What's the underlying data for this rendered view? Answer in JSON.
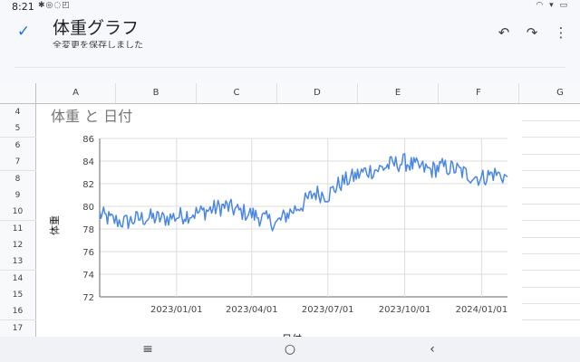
{
  "status_bar": {
    "time": "8:21",
    "left_icons": "✱◎◌◰",
    "right_icons": "◠ ▾ ▭"
  },
  "app_bar": {
    "title": "体重グラフ",
    "subtitle": "全変更を保存しました",
    "icons": {
      "check": "check-icon",
      "undo": "undo-icon",
      "redo": "redo-icon",
      "more": "more-vert-icon"
    }
  },
  "sheet": {
    "columns": [
      "A",
      "B",
      "C",
      "D",
      "E",
      "F",
      "G"
    ],
    "rows": [
      "4",
      "5",
      "6",
      "7",
      "8",
      "9",
      "10",
      "11",
      "12",
      "13",
      "14",
      "15",
      "16",
      "17"
    ]
  },
  "chart_data": {
    "type": "line",
    "title": "体重 と 日付",
    "xlabel": "日付",
    "ylabel": "体重",
    "x_range": [
      "2022-10-01",
      "2024-02-01"
    ],
    "ylim": [
      72,
      86
    ],
    "y_ticks": [
      72,
      74,
      76,
      78,
      80,
      82,
      84,
      86
    ],
    "x_ticks": [
      "2023/01/01",
      "2023/04/01",
      "2023/07/01",
      "2023/10/01",
      "2024/01/01"
    ],
    "grid": true,
    "color": "#4a86e8",
    "series": [
      {
        "x": [
          "2022-10-01",
          "2022-10-15",
          "2022-11-01",
          "2022-11-15",
          "2022-12-01",
          "2022-12-15",
          "2023-01-01",
          "2023-01-15",
          "2023-02-01",
          "2023-02-15",
          "2023-03-01",
          "2023-03-15",
          "2023-04-01",
          "2023-04-15",
          "2023-05-01",
          "2023-05-15",
          "2023-06-01",
          "2023-06-15",
          "2023-07-01",
          "2023-07-15",
          "2023-08-01",
          "2023-08-15",
          "2023-09-01",
          "2023-09-15",
          "2023-10-01",
          "2023-10-15",
          "2023-11-01",
          "2023-11-15",
          "2023-12-01",
          "2023-12-15",
          "2024-01-01",
          "2024-01-15",
          "2024-02-01"
        ],
        "y": [
          79.3,
          78.8,
          78.6,
          78.9,
          79.0,
          78.9,
          79.1,
          79.3,
          79.5,
          79.8,
          80.0,
          79.6,
          79.3,
          78.9,
          78.5,
          79.4,
          80.2,
          81.2,
          81.0,
          82.0,
          82.6,
          83.1,
          83.3,
          83.7,
          83.9,
          83.5,
          83.2,
          83.5,
          83.3,
          82.8,
          82.5,
          82.9,
          82.6
        ]
      }
    ]
  },
  "nav_bar": {
    "icons": {
      "recents": "recents-icon",
      "home": "home-icon",
      "back": "back-icon"
    }
  }
}
